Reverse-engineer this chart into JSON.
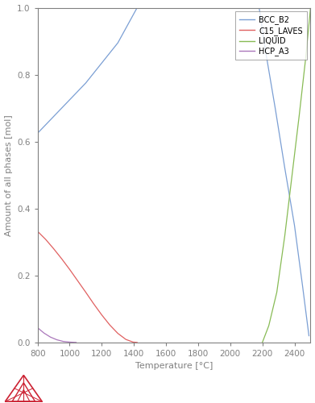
{
  "xlabel": "Temperature [°C]",
  "ylabel": "Amount of all phases [mol]",
  "xlim": [
    800,
    2500
  ],
  "ylim": [
    0.0,
    1.0
  ],
  "xticks": [
    800,
    1000,
    1200,
    1400,
    1600,
    1800,
    2000,
    2200,
    2400
  ],
  "yticks": [
    0.0,
    0.2,
    0.4,
    0.6,
    0.8,
    1.0
  ],
  "legend_labels": [
    "BCC_B2",
    "C15_LAVES",
    "LIQUID",
    "HCP_A3"
  ],
  "legend_colors": [
    "#7b9fd4",
    "#e06060",
    "#88bb55",
    "#aa77bb"
  ],
  "spine_color": "#808080",
  "tick_color": "#808080",
  "bcc_b2": {
    "x": [
      800,
      900,
      1000,
      1100,
      1200,
      1300,
      1380,
      1420,
      2180,
      2220,
      2280,
      2340,
      2400,
      2450,
      2490
    ],
    "y": [
      0.625,
      0.675,
      0.725,
      0.775,
      0.835,
      0.895,
      0.965,
      1.0,
      1.0,
      0.87,
      0.7,
      0.52,
      0.35,
      0.17,
      0.02
    ]
  },
  "c15_laves": {
    "x": [
      800,
      850,
      900,
      950,
      1000,
      1050,
      1100,
      1150,
      1200,
      1250,
      1300,
      1350,
      1395,
      1420
    ],
    "y": [
      0.332,
      0.308,
      0.28,
      0.25,
      0.218,
      0.184,
      0.15,
      0.115,
      0.082,
      0.052,
      0.027,
      0.009,
      0.001,
      0.0
    ]
  },
  "liquid": {
    "x": [
      2200,
      2240,
      2290,
      2340,
      2390,
      2430,
      2470,
      2500
    ],
    "y": [
      0.0,
      0.05,
      0.15,
      0.32,
      0.52,
      0.68,
      0.85,
      1.0
    ]
  },
  "hcp_a3": {
    "x": [
      800,
      840,
      880,
      920,
      960,
      1000,
      1040
    ],
    "y": [
      0.044,
      0.028,
      0.016,
      0.008,
      0.003,
      0.001,
      0.0
    ]
  },
  "logo_red": "#cc2233"
}
